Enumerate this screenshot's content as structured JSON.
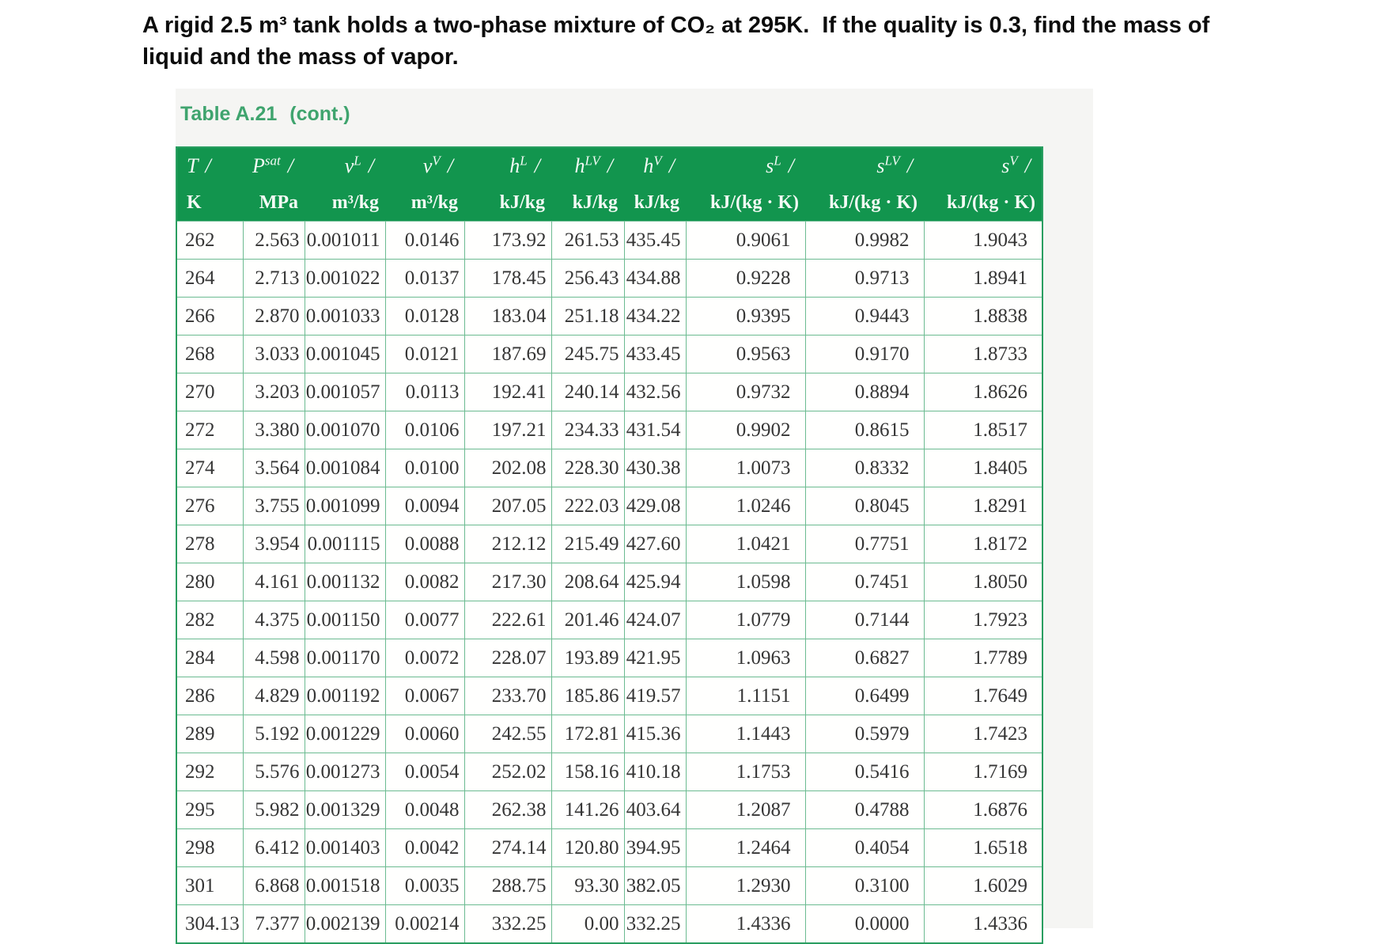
{
  "problem": {
    "line1": "A rigid 2.5 m³ tank holds a two-phase mixture of CO₂ at 295K.  If the quality is 0.3, find the mass of",
    "line2": "liquid and the mass of vapor."
  },
  "table": {
    "caption": "Table A.21",
    "caption_cont": "(cont.)",
    "slash": "/",
    "columns": [
      {
        "sym": "T",
        "sup": "",
        "unit": "K"
      },
      {
        "sym": "P",
        "sup": "sat",
        "unit": "MPa"
      },
      {
        "sym": "v",
        "sup": "L",
        "unit": "m³/kg"
      },
      {
        "sym": "v",
        "sup": "V",
        "unit": "m³/kg"
      },
      {
        "sym": "h",
        "sup": "L",
        "unit": "kJ/kg"
      },
      {
        "sym": "h",
        "sup": "LV",
        "unit": "kJ/kg"
      },
      {
        "sym": "h",
        "sup": "V",
        "unit": "kJ/kg"
      },
      {
        "sym": "s",
        "sup": "L",
        "unit": "kJ/(kg · K)"
      },
      {
        "sym": "s",
        "sup": "LV",
        "unit": "kJ/(kg · K)"
      },
      {
        "sym": "s",
        "sup": "V",
        "unit": "kJ/(kg · K)"
      }
    ],
    "rows": [
      [
        "262",
        "2.563",
        "0.001011",
        "0.0146",
        "173.92",
        "261.53",
        "435.45",
        "0.9061",
        "0.9982",
        "1.9043"
      ],
      [
        "264",
        "2.713",
        "0.001022",
        "0.0137",
        "178.45",
        "256.43",
        "434.88",
        "0.9228",
        "0.9713",
        "1.8941"
      ],
      [
        "266",
        "2.870",
        "0.001033",
        "0.0128",
        "183.04",
        "251.18",
        "434.22",
        "0.9395",
        "0.9443",
        "1.8838"
      ],
      [
        "268",
        "3.033",
        "0.001045",
        "0.0121",
        "187.69",
        "245.75",
        "433.45",
        "0.9563",
        "0.9170",
        "1.8733"
      ],
      [
        "270",
        "3.203",
        "0.001057",
        "0.0113",
        "192.41",
        "240.14",
        "432.56",
        "0.9732",
        "0.8894",
        "1.8626"
      ],
      [
        "272",
        "3.380",
        "0.001070",
        "0.0106",
        "197.21",
        "234.33",
        "431.54",
        "0.9902",
        "0.8615",
        "1.8517"
      ],
      [
        "274",
        "3.564",
        "0.001084",
        "0.0100",
        "202.08",
        "228.30",
        "430.38",
        "1.0073",
        "0.8332",
        "1.8405"
      ],
      [
        "276",
        "3.755",
        "0.001099",
        "0.0094",
        "207.05",
        "222.03",
        "429.08",
        "1.0246",
        "0.8045",
        "1.8291"
      ],
      [
        "278",
        "3.954",
        "0.001115",
        "0.0088",
        "212.12",
        "215.49",
        "427.60",
        "1.0421",
        "0.7751",
        "1.8172"
      ],
      [
        "280",
        "4.161",
        "0.001132",
        "0.0082",
        "217.30",
        "208.64",
        "425.94",
        "1.0598",
        "0.7451",
        "1.8050"
      ],
      [
        "282",
        "4.375",
        "0.001150",
        "0.0077",
        "222.61",
        "201.46",
        "424.07",
        "1.0779",
        "0.7144",
        "1.7923"
      ],
      [
        "284",
        "4.598",
        "0.001170",
        "0.0072",
        "228.07",
        "193.89",
        "421.95",
        "1.0963",
        "0.6827",
        "1.7789"
      ],
      [
        "286",
        "4.829",
        "0.001192",
        "0.0067",
        "233.70",
        "185.86",
        "419.57",
        "1.1151",
        "0.6499",
        "1.7649"
      ],
      [
        "289",
        "5.192",
        "0.001229",
        "0.0060",
        "242.55",
        "172.81",
        "415.36",
        "1.1443",
        "0.5979",
        "1.7423"
      ],
      [
        "292",
        "5.576",
        "0.001273",
        "0.0054",
        "252.02",
        "158.16",
        "410.18",
        "1.1753",
        "0.5416",
        "1.7169"
      ],
      [
        "295",
        "5.982",
        "0.001329",
        "0.0048",
        "262.38",
        "141.26",
        "403.64",
        "1.2087",
        "0.4788",
        "1.6876"
      ],
      [
        "298",
        "6.412",
        "0.001403",
        "0.0042",
        "274.14",
        "120.80",
        "394.95",
        "1.2464",
        "0.4054",
        "1.6518"
      ],
      [
        "301",
        "6.868",
        "0.001518",
        "0.0035",
        "288.75",
        "93.30",
        "382.05",
        "1.2930",
        "0.3100",
        "1.6029"
      ],
      [
        "304.13",
        "7.377",
        "0.002139",
        "0.00214",
        "332.25",
        "0.00",
        "332.25",
        "1.4336",
        "0.0000",
        "1.4336"
      ]
    ]
  },
  "colors": {
    "header_green": "#12954e",
    "grid_green": "#6cbb91",
    "label_green": "#3fa46e"
  }
}
